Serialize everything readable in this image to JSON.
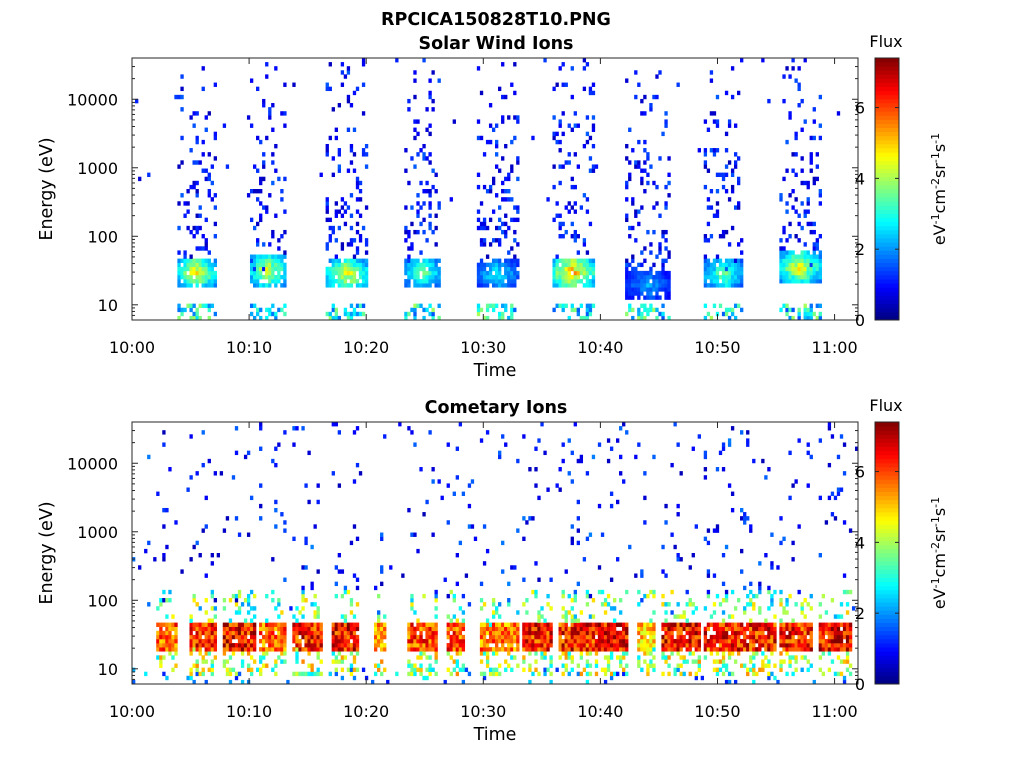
{
  "figure_title": "RPCICA150828T10.PNG",
  "chart_data": [
    {
      "type": "heatmap",
      "title": "Solar Wind Ions",
      "xlabel": "Time",
      "ylabel": "Energy (eV)",
      "y_scale": "log",
      "xlim": [
        "10:00",
        "11:02"
      ],
      "ylim": [
        6,
        40000
      ],
      "x_ticks": [
        "10:00",
        "10:10",
        "10:20",
        "10:30",
        "10:40",
        "10:50",
        "11:00"
      ],
      "y_ticks": [
        "10",
        "100",
        "1000",
        "10000"
      ],
      "colorbar": {
        "title": "Flux",
        "label": "eV⁻¹cm⁻²sr⁻¹s⁻¹",
        "range": [
          0,
          7.4
        ],
        "ticks": [
          "0",
          "2",
          "4",
          "6"
        ],
        "colormap": "jet"
      },
      "pulses": [
        {
          "start": "10:03.8",
          "end": "10:07.2",
          "peak_energy_eV": 30,
          "peak_flux": 4.6
        },
        {
          "start": "10:10.0",
          "end": "10:13.2",
          "peak_energy_eV": 32,
          "peak_flux": 4.4
        },
        {
          "start": "10:16.6",
          "end": "10:20.2",
          "peak_energy_eV": 28,
          "peak_flux": 4.6
        },
        {
          "start": "10:23.2",
          "end": "10:26.4",
          "peak_energy_eV": 30,
          "peak_flux": 3.6
        },
        {
          "start": "10:29.4",
          "end": "10:33.0",
          "peak_energy_eV": 28,
          "peak_flux": 2.8
        },
        {
          "start": "10:35.8",
          "end": "10:39.4",
          "peak_energy_eV": 30,
          "peak_flux": 5.2
        },
        {
          "start": "10:42.2",
          "end": "10:46.0",
          "peak_energy_eV": 20,
          "peak_flux": 2.2
        },
        {
          "start": "10:48.8",
          "end": "10:52.2",
          "peak_energy_eV": 28,
          "peak_flux": 3.6
        },
        {
          "start": "10:55.2",
          "end": "10:58.8",
          "peak_energy_eV": 35,
          "peak_flux": 4.6
        }
      ]
    },
    {
      "type": "heatmap",
      "title": "Cometary Ions",
      "xlabel": "Time",
      "ylabel": "Energy (eV)",
      "y_scale": "log",
      "xlim": [
        "10:00",
        "11:02"
      ],
      "ylim": [
        6,
        40000
      ],
      "x_ticks": [
        "10:00",
        "10:10",
        "10:20",
        "10:30",
        "10:40",
        "10:50",
        "11:00"
      ],
      "y_ticks": [
        "10",
        "100",
        "1000",
        "10000"
      ],
      "colorbar": {
        "title": "Flux",
        "label": "eV⁻¹cm⁻²sr⁻¹s⁻¹",
        "range": [
          0,
          7.4
        ],
        "ticks": [
          "0",
          "2",
          "4",
          "6"
        ],
        "colormap": "jet"
      },
      "band": {
        "low_energy_eV": 20,
        "high_energy_eV": 40,
        "peak_flux": 6.8
      },
      "pulses": [
        {
          "start": "10:02.0",
          "end": "10:04.0",
          "peak_flux": 6.4
        },
        {
          "start": "10:04.8",
          "end": "10:07.2",
          "peak_flux": 7.0
        },
        {
          "start": "10:07.8",
          "end": "10:10.6",
          "peak_flux": 7.2
        },
        {
          "start": "10:10.8",
          "end": "10:13.2",
          "peak_flux": 6.4
        },
        {
          "start": "10:13.8",
          "end": "10:16.2",
          "peak_flux": 7.0
        },
        {
          "start": "10:17.0",
          "end": "10:19.4",
          "peak_flux": 7.2
        },
        {
          "start": "10:20.6",
          "end": "10:21.8",
          "peak_flux": 5.8
        },
        {
          "start": "10:23.6",
          "end": "10:26.2",
          "peak_flux": 6.6
        },
        {
          "start": "10:26.8",
          "end": "10:28.4",
          "peak_flux": 6.6
        },
        {
          "start": "10:29.6",
          "end": "10:33.0",
          "peak_flux": 6.2
        },
        {
          "start": "10:33.2",
          "end": "10:35.8",
          "peak_flux": 7.0
        },
        {
          "start": "10:36.4",
          "end": "10:39.4",
          "peak_flux": 7.0
        },
        {
          "start": "10:39.6",
          "end": "10:42.4",
          "peak_flux": 7.2
        },
        {
          "start": "10:43.2",
          "end": "10:44.6",
          "peak_flux": 5.6
        },
        {
          "start": "10:45.2",
          "end": "10:48.6",
          "peak_flux": 7.2
        },
        {
          "start": "10:48.8",
          "end": "10:51.8",
          "peak_flux": 7.0
        },
        {
          "start": "10:52.0",
          "end": "10:55.0",
          "peak_flux": 7.0
        },
        {
          "start": "10:55.4",
          "end": "10:58.2",
          "peak_flux": 7.0
        },
        {
          "start": "10:58.6",
          "end": "11:01.6",
          "peak_flux": 7.2
        }
      ]
    }
  ]
}
